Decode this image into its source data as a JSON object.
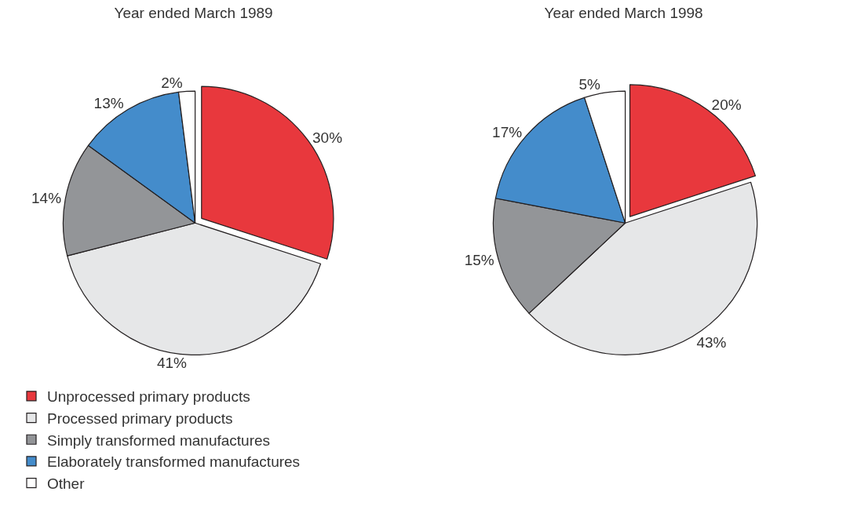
{
  "chart_data": [
    {
      "type": "pie",
      "title": "Year ended March 1989",
      "categories": [
        "Unprocessed primary products",
        "Processed primary products",
        "Simply transformed manufactures",
        "Elaborately transformed manufactures",
        "Other"
      ],
      "values": [
        30,
        41,
        14,
        13,
        2
      ],
      "value_labels": [
        "30%",
        "41%",
        "14%",
        "13%",
        "2%"
      ],
      "colors": [
        "#e8383d",
        "#e6e7e8",
        "#939598",
        "#448ccb",
        "#ffffff"
      ],
      "legend": "bottom left"
    },
    {
      "type": "pie",
      "title": "Year ended March 1998",
      "categories": [
        null,
        null,
        null,
        null,
        null
      ],
      "values": [
        20,
        43,
        15,
        17,
        5
      ],
      "value_labels": [
        "20%",
        "43%",
        "15%",
        "17%",
        "5%"
      ],
      "colors": [
        "#e8383d",
        "#e6e7e8",
        "#939598",
        "#448ccb",
        "#ffffff"
      ],
      "legend": false
    }
  ]
}
